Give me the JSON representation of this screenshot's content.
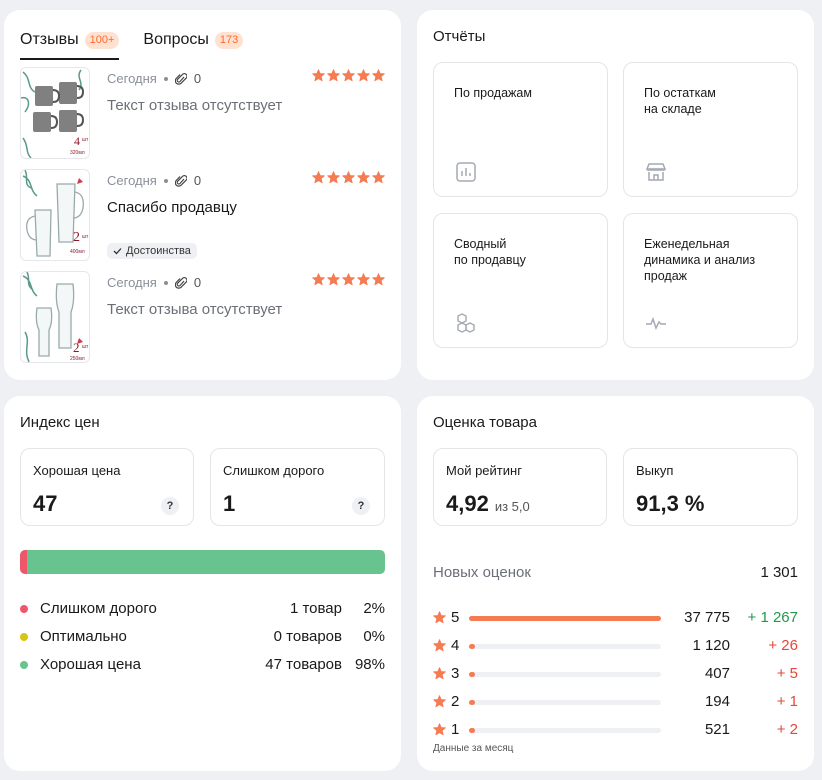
{
  "reviews": {
    "tabs": [
      {
        "label": "Отзывы",
        "badge": "100+"
      },
      {
        "label": "Вопросы",
        "badge": "173"
      }
    ],
    "items": [
      {
        "date": "Сегодня",
        "attachments": "0",
        "stars": 5,
        "text": "Текст отзыва отсутствует",
        "tag": ""
      },
      {
        "date": "Сегодня",
        "attachments": "0",
        "stars": 5,
        "text": "Спасибо продавцу",
        "tag": "Достоинства"
      },
      {
        "date": "Сегодня",
        "attachments": "0",
        "stars": 5,
        "text": "Текст отзыва отсутствует",
        "tag": ""
      }
    ],
    "thumbs": [
      {
        "count": "4",
        "unit": "шт",
        "volume": "320мл"
      },
      {
        "count": "2",
        "unit": "шт",
        "volume": "400мл"
      },
      {
        "count": "2",
        "unit": "шт",
        "volume": "250мл"
      }
    ]
  },
  "reports": {
    "title": "Отчёты",
    "items": [
      {
        "label": "По продажам",
        "icon": "bar-chart-icon"
      },
      {
        "label": "По остаткам\nна складе",
        "icon": "store-icon"
      },
      {
        "label": "Сводный\nпо продавцу",
        "icon": "cubes-icon"
      },
      {
        "label": "Еженедельная\nдинамика и анализ\nпродаж",
        "icon": "pulse-icon"
      }
    ]
  },
  "price_index": {
    "title": "Индекс цен",
    "good": {
      "label": "Хорошая цена",
      "value": "47",
      "help": "?"
    },
    "expensive": {
      "label": "Слишком дорого",
      "value": "1",
      "help": "?"
    },
    "segments": [
      {
        "name": "Слишком дорого",
        "count": "1 товар",
        "pct": "2%",
        "share": 0.02,
        "color": "#f0566a"
      },
      {
        "name": "Оптимально",
        "count": "0 товаров",
        "pct": "0%",
        "share": 0.0,
        "color": "#d6c514"
      },
      {
        "name": "Хорошая цена",
        "count": "47 товаров",
        "pct": "98%",
        "share": 0.98,
        "color": "#68c48f"
      }
    ]
  },
  "rating": {
    "title": "Оценка товара",
    "my_rating": {
      "label": "Мой рейтинг",
      "value": "4,92",
      "sub": "из 5,0"
    },
    "buyout": {
      "label": "Выкуп",
      "value": "91,3 %"
    },
    "new_label": "Новых оценок",
    "new_value": "1 301",
    "rows": [
      {
        "stars": "5",
        "count": "37 775",
        "delta": "+ 1 267",
        "share": 1.0,
        "delta_color": "#1f9a4a"
      },
      {
        "stars": "4",
        "count": "1 120",
        "delta": "+ 26",
        "share": 0.03,
        "delta_color": "#e8463a"
      },
      {
        "stars": "3",
        "count": "407",
        "delta": "+ 5",
        "share": 0.03,
        "delta_color": "#e8463a"
      },
      {
        "stars": "2",
        "count": "194",
        "delta": "+ 1",
        "share": 0.03,
        "delta_color": "#e8463a"
      },
      {
        "stars": "1",
        "count": "521",
        "delta": "+ 2",
        "share": 0.03,
        "delta_color": "#e8463a"
      }
    ],
    "footnote": "Данные за месяц"
  },
  "colors": {
    "accent": "#ff6a2b",
    "star": "#f57c52",
    "bar_fill": "#f57c52"
  }
}
